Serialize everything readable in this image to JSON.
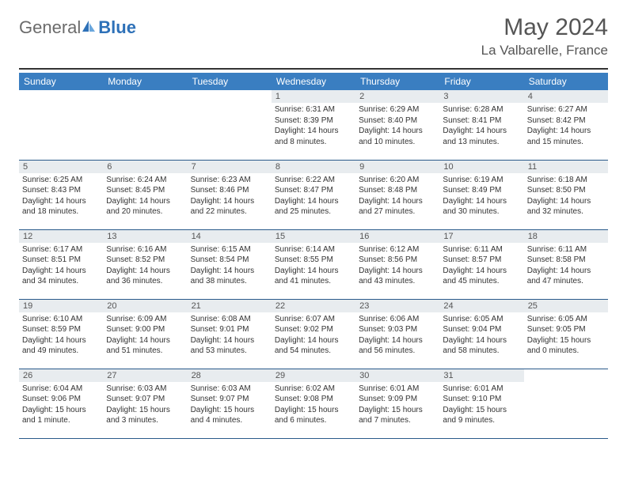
{
  "branding": {
    "word1": "General",
    "word2": "Blue",
    "color1": "#6b6b6b",
    "color2": "#2e71b8"
  },
  "title": "May 2024",
  "location": "La Valbarelle, France",
  "header_bg": "#3a7ec1",
  "daynum_bg": "#e8ecef",
  "row_border": "#2a5a8a",
  "week_header": [
    "Sunday",
    "Monday",
    "Tuesday",
    "Wednesday",
    "Thursday",
    "Friday",
    "Saturday"
  ],
  "weeks": [
    [
      null,
      null,
      null,
      {
        "n": "1",
        "sr": "6:31 AM",
        "ss": "8:39 PM",
        "dl": "14 hours and 8 minutes."
      },
      {
        "n": "2",
        "sr": "6:29 AM",
        "ss": "8:40 PM",
        "dl": "14 hours and 10 minutes."
      },
      {
        "n": "3",
        "sr": "6:28 AM",
        "ss": "8:41 PM",
        "dl": "14 hours and 13 minutes."
      },
      {
        "n": "4",
        "sr": "6:27 AM",
        "ss": "8:42 PM",
        "dl": "14 hours and 15 minutes."
      }
    ],
    [
      {
        "n": "5",
        "sr": "6:25 AM",
        "ss": "8:43 PM",
        "dl": "14 hours and 18 minutes."
      },
      {
        "n": "6",
        "sr": "6:24 AM",
        "ss": "8:45 PM",
        "dl": "14 hours and 20 minutes."
      },
      {
        "n": "7",
        "sr": "6:23 AM",
        "ss": "8:46 PM",
        "dl": "14 hours and 22 minutes."
      },
      {
        "n": "8",
        "sr": "6:22 AM",
        "ss": "8:47 PM",
        "dl": "14 hours and 25 minutes."
      },
      {
        "n": "9",
        "sr": "6:20 AM",
        "ss": "8:48 PM",
        "dl": "14 hours and 27 minutes."
      },
      {
        "n": "10",
        "sr": "6:19 AM",
        "ss": "8:49 PM",
        "dl": "14 hours and 30 minutes."
      },
      {
        "n": "11",
        "sr": "6:18 AM",
        "ss": "8:50 PM",
        "dl": "14 hours and 32 minutes."
      }
    ],
    [
      {
        "n": "12",
        "sr": "6:17 AM",
        "ss": "8:51 PM",
        "dl": "14 hours and 34 minutes."
      },
      {
        "n": "13",
        "sr": "6:16 AM",
        "ss": "8:52 PM",
        "dl": "14 hours and 36 minutes."
      },
      {
        "n": "14",
        "sr": "6:15 AM",
        "ss": "8:54 PM",
        "dl": "14 hours and 38 minutes."
      },
      {
        "n": "15",
        "sr": "6:14 AM",
        "ss": "8:55 PM",
        "dl": "14 hours and 41 minutes."
      },
      {
        "n": "16",
        "sr": "6:12 AM",
        "ss": "8:56 PM",
        "dl": "14 hours and 43 minutes."
      },
      {
        "n": "17",
        "sr": "6:11 AM",
        "ss": "8:57 PM",
        "dl": "14 hours and 45 minutes."
      },
      {
        "n": "18",
        "sr": "6:11 AM",
        "ss": "8:58 PM",
        "dl": "14 hours and 47 minutes."
      }
    ],
    [
      {
        "n": "19",
        "sr": "6:10 AM",
        "ss": "8:59 PM",
        "dl": "14 hours and 49 minutes."
      },
      {
        "n": "20",
        "sr": "6:09 AM",
        "ss": "9:00 PM",
        "dl": "14 hours and 51 minutes."
      },
      {
        "n": "21",
        "sr": "6:08 AM",
        "ss": "9:01 PM",
        "dl": "14 hours and 53 minutes."
      },
      {
        "n": "22",
        "sr": "6:07 AM",
        "ss": "9:02 PM",
        "dl": "14 hours and 54 minutes."
      },
      {
        "n": "23",
        "sr": "6:06 AM",
        "ss": "9:03 PM",
        "dl": "14 hours and 56 minutes."
      },
      {
        "n": "24",
        "sr": "6:05 AM",
        "ss": "9:04 PM",
        "dl": "14 hours and 58 minutes."
      },
      {
        "n": "25",
        "sr": "6:05 AM",
        "ss": "9:05 PM",
        "dl": "15 hours and 0 minutes."
      }
    ],
    [
      {
        "n": "26",
        "sr": "6:04 AM",
        "ss": "9:06 PM",
        "dl": "15 hours and 1 minute."
      },
      {
        "n": "27",
        "sr": "6:03 AM",
        "ss": "9:07 PM",
        "dl": "15 hours and 3 minutes."
      },
      {
        "n": "28",
        "sr": "6:03 AM",
        "ss": "9:07 PM",
        "dl": "15 hours and 4 minutes."
      },
      {
        "n": "29",
        "sr": "6:02 AM",
        "ss": "9:08 PM",
        "dl": "15 hours and 6 minutes."
      },
      {
        "n": "30",
        "sr": "6:01 AM",
        "ss": "9:09 PM",
        "dl": "15 hours and 7 minutes."
      },
      {
        "n": "31",
        "sr": "6:01 AM",
        "ss": "9:10 PM",
        "dl": "15 hours and 9 minutes."
      },
      null
    ]
  ],
  "labels": {
    "sunrise": "Sunrise: ",
    "sunset": "Sunset: ",
    "daylight": "Daylight: "
  }
}
